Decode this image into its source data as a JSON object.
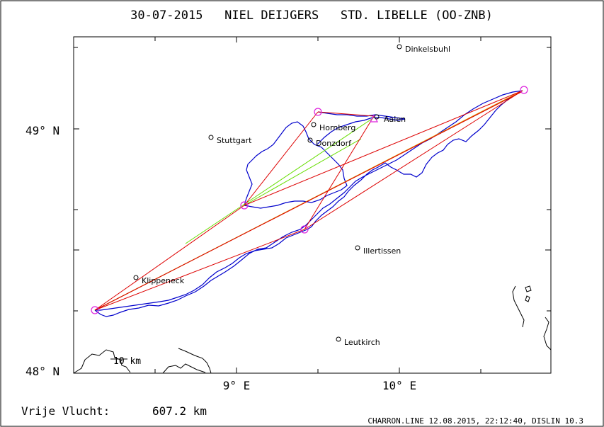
{
  "header": {
    "title": "30-07-2015   NIEL DEIJGERS   STD. LIBELLE (OO-ZNB)"
  },
  "footer": {
    "distance_label": "Vrije Vlucht:",
    "distance_value": "607.2 km",
    "software_info": "CHARRON.LINE 12.08.2015, 22:12:40, DISLIN 10.3"
  },
  "map": {
    "axis_labels": {
      "lat_49": "49° N",
      "lat_48": "48° N",
      "lon_9": "9° E",
      "lon_10": "10° E"
    },
    "scale_bar_label": "10 km",
    "places": [
      {
        "name": "Dinkelsbuhl",
        "lon": 10.0,
        "lat": 49.34
      },
      {
        "name": "Hornberg",
        "lon": 9.52,
        "lat": 49.02
      },
      {
        "name": "Aalen",
        "lon": 9.88,
        "lat": 49.05
      },
      {
        "name": "Stuttgart",
        "lon": 8.85,
        "lat": 48.96
      },
      {
        "name": "Donzdorf",
        "lon": 9.5,
        "lat": 48.95
      },
      {
        "name": "Illertissen",
        "lon": 9.76,
        "lat": 48.52
      },
      {
        "name": "Klippeneck",
        "lon": 8.39,
        "lat": 48.39
      },
      {
        "name": "Leutkirch",
        "lon": 9.64,
        "lat": 48.13
      }
    ],
    "turnpoints": [
      {
        "lon": 8.14,
        "lat": 48.25
      },
      {
        "lon": 9.07,
        "lat": 48.68
      },
      {
        "lon": 9.54,
        "lat": 49.07
      },
      {
        "lon": 9.87,
        "lat": 49.04
      },
      {
        "lon": 9.43,
        "lat": 48.58
      },
      {
        "lon": 10.76,
        "lat": 49.16
      }
    ],
    "colors": {
      "frame": "#000000",
      "track": "#0000cc",
      "route_red": "#dd0000",
      "route_green": "#66dd00",
      "route_orange": "#ee8800",
      "turnpoint": "#dd22dd",
      "borders": "#000000"
    }
  }
}
